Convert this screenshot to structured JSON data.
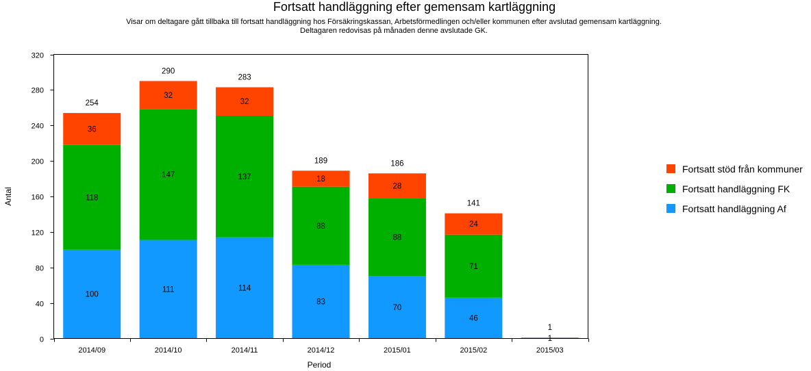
{
  "chart_data": {
    "type": "bar",
    "stacked": true,
    "title": "Fortsatt handläggning efter gemensam kartläggning",
    "subtitle_lines": [
      "Visar om deltagare gått tillbaka till fortsatt handläggning hos Försäkringskassan, Arbetsförmedlingen och/eller kommunen efter avslutad gemensam kartläggning.",
      "Deltagaren redovisas på månaden denne avslutade GK."
    ],
    "xlabel": "Period",
    "ylabel": "Antal",
    "ylim": [
      0,
      320
    ],
    "yticks": [
      0,
      40,
      80,
      120,
      160,
      200,
      240,
      280,
      320
    ],
    "grid": false,
    "legend_position": "right",
    "categories": [
      "2014/09",
      "2014/10",
      "2014/11",
      "2014/12",
      "2015/01",
      "2015/02",
      "2015/03"
    ],
    "series": [
      {
        "name": "Fortsatt handläggning Af",
        "color": "#1199ff",
        "values": [
          100,
          111,
          114,
          83,
          70,
          46,
          1
        ]
      },
      {
        "name": "Fortsatt handläggning FK",
        "color": "#00b000",
        "values": [
          118,
          147,
          137,
          88,
          88,
          71,
          0
        ]
      },
      {
        "name": "Fortsatt stöd från kommuner",
        "color": "#ff4400",
        "values": [
          36,
          32,
          32,
          18,
          28,
          24,
          0
        ]
      }
    ],
    "totals": [
      254,
      290,
      283,
      189,
      186,
      141,
      1
    ]
  }
}
